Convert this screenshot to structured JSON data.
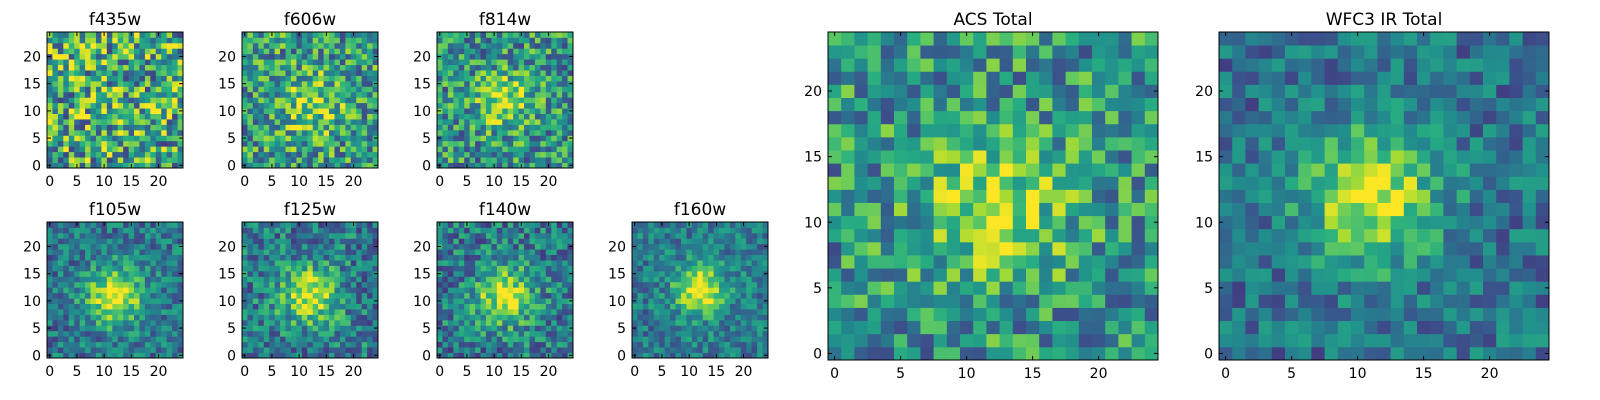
{
  "chart_data": [
    {
      "type": "heatmap",
      "title": "f435w",
      "grid_size": 25,
      "xticks": [
        0,
        5,
        10,
        15,
        20
      ],
      "yticks": [
        0,
        5,
        10,
        15,
        20
      ],
      "xlim": [
        -0.5,
        24.5
      ],
      "ylim": [
        -0.5,
        24.5
      ],
      "colormap": "viridis",
      "source_peak": [
        11,
        12
      ],
      "source_width": 6,
      "source_strength": 0.05,
      "noise_level": 0.42,
      "background": 0.6,
      "seed": 11
    },
    {
      "type": "heatmap",
      "title": "f606w",
      "grid_size": 25,
      "xticks": [
        0,
        5,
        10,
        15,
        20
      ],
      "yticks": [
        0,
        5,
        10,
        15,
        20
      ],
      "xlim": [
        -0.5,
        24.5
      ],
      "ylim": [
        -0.5,
        24.5
      ],
      "colormap": "viridis",
      "source_peak": [
        12,
        11
      ],
      "source_width": 4,
      "source_strength": 0.28,
      "noise_level": 0.34,
      "background": 0.55,
      "seed": 23
    },
    {
      "type": "heatmap",
      "title": "f814w",
      "grid_size": 25,
      "xticks": [
        0,
        5,
        10,
        15,
        20
      ],
      "yticks": [
        0,
        5,
        10,
        15,
        20
      ],
      "xlim": [
        -0.5,
        24.5
      ],
      "ylim": [
        -0.5,
        24.5
      ],
      "colormap": "viridis",
      "source_peak": [
        12,
        12
      ],
      "source_width": 3.5,
      "source_strength": 0.38,
      "noise_level": 0.32,
      "background": 0.52,
      "seed": 37
    },
    {
      "type": "heatmap",
      "title": "f105w",
      "grid_size": 25,
      "xticks": [
        0,
        5,
        10,
        15,
        20
      ],
      "yticks": [
        0,
        5,
        10,
        15,
        20
      ],
      "xlim": [
        -0.5,
        24.5
      ],
      "ylim": [
        -0.5,
        24.5
      ],
      "colormap": "viridis",
      "source_peak": [
        12,
        11
      ],
      "source_width": 3.6,
      "source_strength": 0.6,
      "noise_level": 0.22,
      "background": 0.4,
      "seed": 41
    },
    {
      "type": "heatmap",
      "title": "f125w",
      "grid_size": 25,
      "xticks": [
        0,
        5,
        10,
        15,
        20
      ],
      "yticks": [
        0,
        5,
        10,
        15,
        20
      ],
      "xlim": [
        -0.5,
        24.5
      ],
      "ylim": [
        -0.5,
        24.5
      ],
      "colormap": "viridis",
      "source_peak": [
        12,
        11
      ],
      "source_width": 3.6,
      "source_strength": 0.55,
      "noise_level": 0.26,
      "background": 0.42,
      "seed": 53
    },
    {
      "type": "heatmap",
      "title": "f140w",
      "grid_size": 25,
      "xticks": [
        0,
        5,
        10,
        15,
        20
      ],
      "yticks": [
        0,
        5,
        10,
        15,
        20
      ],
      "xlim": [
        -0.5,
        24.5
      ],
      "ylim": [
        -0.5,
        24.5
      ],
      "colormap": "viridis",
      "source_peak": [
        12,
        11
      ],
      "source_width": 3.6,
      "source_strength": 0.55,
      "noise_level": 0.26,
      "background": 0.42,
      "seed": 67
    },
    {
      "type": "heatmap",
      "title": "f160w",
      "grid_size": 25,
      "xticks": [
        0,
        5,
        10,
        15,
        20
      ],
      "yticks": [
        0,
        5,
        10,
        15,
        20
      ],
      "xlim": [
        -0.5,
        24.5
      ],
      "ylim": [
        -0.5,
        24.5
      ],
      "colormap": "viridis",
      "source_peak": [
        12,
        12
      ],
      "source_width": 3.2,
      "source_strength": 0.6,
      "noise_level": 0.2,
      "background": 0.42,
      "seed": 79
    },
    {
      "type": "heatmap",
      "title": "ACS Total",
      "grid_size": 25,
      "xticks": [
        0,
        5,
        10,
        15,
        20
      ],
      "yticks": [
        0,
        5,
        10,
        15,
        20
      ],
      "xlim": [
        -0.5,
        24.5
      ],
      "ylim": [
        -0.5,
        24.5
      ],
      "colormap": "viridis",
      "source_peak": [
        12,
        11
      ],
      "source_width": 3.8,
      "source_strength": 0.42,
      "noise_level": 0.3,
      "background": 0.52,
      "seed": 91
    },
    {
      "type": "heatmap",
      "title": "WFC3 IR Total",
      "grid_size": 25,
      "xticks": [
        0,
        5,
        10,
        15,
        20
      ],
      "yticks": [
        0,
        5,
        10,
        15,
        20
      ],
      "xlim": [
        -0.5,
        24.5
      ],
      "ylim": [
        -0.5,
        24.5
      ],
      "colormap": "viridis",
      "source_peak": [
        11,
        12
      ],
      "source_width": 3.6,
      "source_strength": 0.58,
      "noise_level": 0.2,
      "background": 0.38,
      "seed": 103
    }
  ]
}
